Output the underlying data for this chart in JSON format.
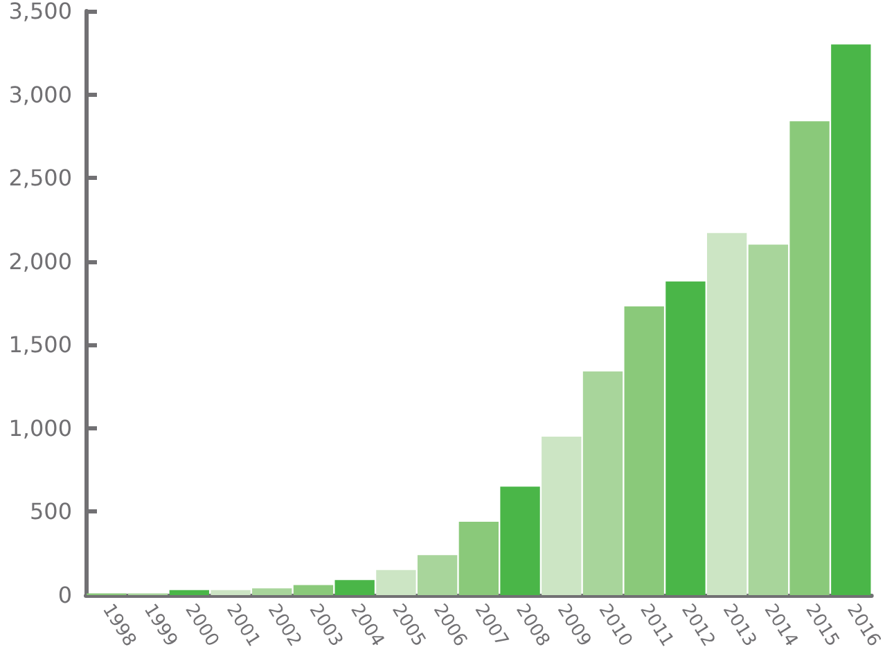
{
  "chart_data": {
    "type": "bar",
    "categories": [
      "1998",
      "1999",
      "2000",
      "2001",
      "2002",
      "2003",
      "2004",
      "2005",
      "2006",
      "2007",
      "2008",
      "2009",
      "2010",
      "2011",
      "2012",
      "2013",
      "2014",
      "2015",
      "2016"
    ],
    "values": [
      10,
      10,
      30,
      30,
      40,
      60,
      90,
      150,
      240,
      440,
      650,
      950,
      1340,
      1730,
      1880,
      2170,
      2100,
      2840,
      3300
    ],
    "colors": [
      "#8ac97a",
      "#a8d59b",
      "#4ab648",
      "#cce5c4",
      "#a8d59b",
      "#8ac97a",
      "#4ab648",
      "#cce5c4",
      "#a8d59b",
      "#8ac97a",
      "#4ab648",
      "#cce5c4",
      "#a8d59b",
      "#8ac97a",
      "#4ab648",
      "#cce5c4",
      "#a8d59b",
      "#8ac97a",
      "#4ab648"
    ],
    "ylim": [
      0,
      3500
    ],
    "yticks": [
      0,
      500,
      {
        "value": 1000,
        "label": "1,000"
      },
      {
        "value": 1500,
        "label": "1,500"
      },
      {
        "value": 2000,
        "label": "2,000"
      },
      {
        "value": 2500,
        "label": "2,500"
      },
      {
        "value": 3000,
        "label": "3,000"
      },
      {
        "value": 3500,
        "label": "3,500"
      }
    ],
    "grid": false
  }
}
